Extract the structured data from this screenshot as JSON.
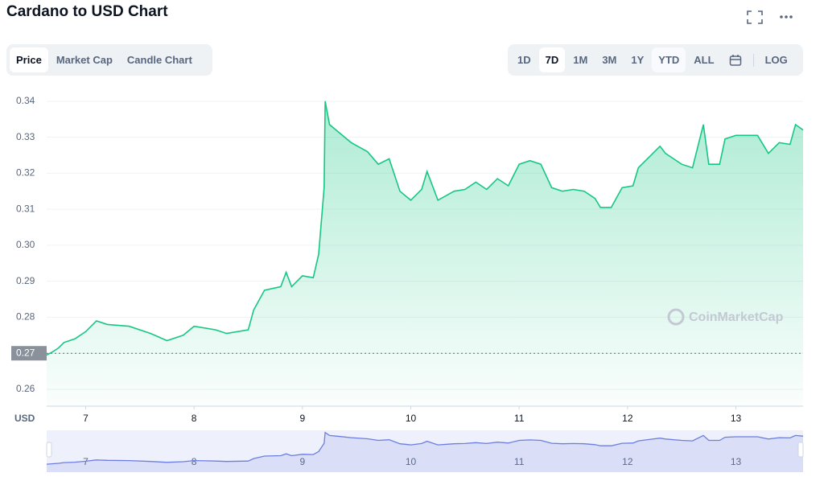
{
  "chart_data": {
    "type": "line",
    "title": "Cardano to USD Chart",
    "x": [
      6.64,
      6.7,
      6.75,
      6.8,
      6.9,
      7.0,
      7.1,
      7.2,
      7.4,
      7.6,
      7.75,
      7.9,
      8.0,
      8.2,
      8.3,
      8.5,
      8.55,
      8.65,
      8.8,
      8.85,
      8.9,
      9.0,
      9.1,
      9.15,
      9.2,
      9.21,
      9.25,
      9.35,
      9.45,
      9.6,
      9.7,
      9.8,
      9.9,
      10.0,
      10.1,
      10.15,
      10.25,
      10.4,
      10.5,
      10.6,
      10.7,
      10.8,
      10.9,
      11.0,
      11.1,
      11.2,
      11.3,
      11.4,
      11.5,
      11.6,
      11.7,
      11.75,
      11.85,
      11.95,
      12.05,
      12.1,
      12.2,
      12.3,
      12.35,
      12.5,
      12.6,
      12.7,
      12.75,
      12.85,
      12.9,
      13.0,
      13.2,
      13.3,
      13.4,
      13.5,
      13.55,
      13.62
    ],
    "values": [
      0.2695,
      0.2705,
      0.2715,
      0.273,
      0.274,
      0.276,
      0.279,
      0.278,
      0.2775,
      0.2755,
      0.2735,
      0.275,
      0.2775,
      0.2765,
      0.2755,
      0.2765,
      0.282,
      0.2875,
      0.2885,
      0.2925,
      0.2885,
      0.2915,
      0.291,
      0.2975,
      0.316,
      0.34,
      0.3335,
      0.331,
      0.3285,
      0.326,
      0.3225,
      0.324,
      0.315,
      0.3125,
      0.3155,
      0.3205,
      0.3125,
      0.315,
      0.3155,
      0.3175,
      0.3155,
      0.3185,
      0.3165,
      0.3225,
      0.3235,
      0.3225,
      0.316,
      0.315,
      0.3155,
      0.315,
      0.313,
      0.3105,
      0.3105,
      0.316,
      0.3165,
      0.3215,
      0.3245,
      0.3275,
      0.3255,
      0.3225,
      0.3215,
      0.3335,
      0.3225,
      0.3225,
      0.3295,
      0.3305,
      0.3305,
      0.3255,
      0.3285,
      0.328,
      0.3335,
      0.332
    ],
    "color": "#16c784",
    "navigator_color": "#6c7ee1",
    "xlim": [
      6.64,
      13.62
    ],
    "xticks": [
      7,
      8,
      9,
      10,
      11,
      12,
      13
    ],
    "ylim": [
      0.2553,
      0.3413
    ],
    "yticks": [
      0.26,
      0.27,
      0.28,
      0.29,
      {
        "value": 0.3,
        "label": "0.30"
      },
      0.31,
      0.32,
      0.33,
      0.34
    ],
    "reference_line": 0.27,
    "grid": true,
    "y_axis_label": "USD",
    "watermark": "CoinMarketCap"
  },
  "controls": {
    "tabs": [
      "Price",
      "Market Cap",
      "Candle Chart"
    ],
    "selected_tab": 0,
    "ranges": [
      "1D",
      "7D",
      "1M",
      "3M",
      "1Y",
      "YTD",
      "ALL"
    ],
    "selected_range": 1,
    "scale": "LOG"
  }
}
